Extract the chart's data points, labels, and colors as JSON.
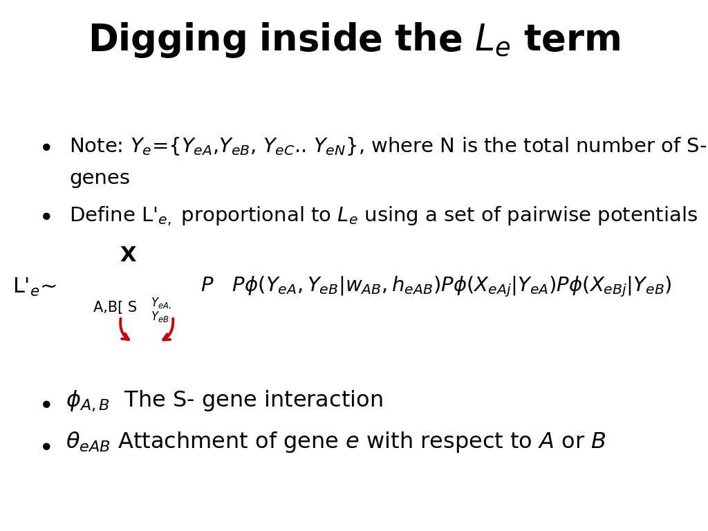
{
  "background_color": "#ffffff",
  "text_color": "#000000",
  "red_color": "#cc0000",
  "figsize": [
    10.24,
    7.68
  ],
  "dpi": 100,
  "title_fontsize": 36,
  "body_fontsize": 21,
  "formula_fontsize": 22,
  "symbol_fontsize": 26
}
